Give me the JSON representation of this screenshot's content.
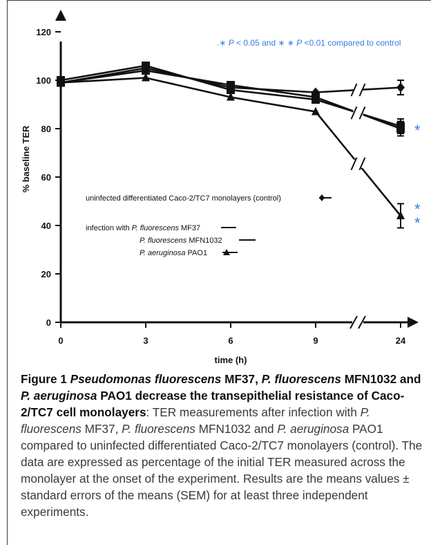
{
  "chart_data": {
    "type": "line",
    "xlabel": "time (h)",
    "ylabel": "% baseline TER",
    "x": [
      0,
      3,
      6,
      9,
      24
    ],
    "x_tick_labels": [
      "0",
      "3",
      "6",
      "9",
      "24"
    ],
    "ylim": [
      0,
      120
    ],
    "y_ticks": [
      0,
      20,
      40,
      60,
      80,
      100,
      120
    ],
    "y_tick_labels": [
      "0",
      "20",
      "40",
      "60",
      "80",
      "100",
      "120"
    ],
    "axis_break": "between 9 and 24",
    "grid": false,
    "series": [
      {
        "name": "uninfected differentiated Caco-2/TC7 monolayers (control)",
        "marker": "diamond",
        "values": [
          99,
          105,
          97,
          95,
          97
        ],
        "sem": [
          2,
          2,
          2,
          2,
          3
        ]
      },
      {
        "name_prefix": "infection with",
        "name_italic": "P. fluorescens",
        "name_suffix": "MF37",
        "marker": "square",
        "values": [
          99,
          104,
          98,
          93,
          80
        ],
        "sem": [
          2,
          2,
          2,
          2,
          3
        ]
      },
      {
        "name_italic": "P. fluorescens",
        "name_suffix": "MFN1032",
        "marker": "square",
        "values": [
          100,
          106,
          96,
          92,
          81
        ],
        "sem": [
          2,
          2,
          2,
          2,
          3
        ]
      },
      {
        "name_italic": "P. aeruginosa",
        "name_suffix": "PAO1",
        "marker": "triangle",
        "values": [
          99,
          101,
          93,
          87,
          44
        ],
        "sem": [
          2,
          2,
          2,
          3,
          5
        ]
      }
    ],
    "significance_note": {
      "star1": "∗",
      "star2": "∗ ∗",
      "p": "P",
      "text1": " < 0.05 and ",
      "text2": " <0.01 compared to control"
    },
    "significance_marks": [
      "*",
      "*",
      "*"
    ],
    "colors": {
      "axis": "#111111",
      "series": "#111111",
      "significance": "#3a7ce6"
    }
  },
  "caption": {
    "parts": [
      {
        "text": "Figure 1 ",
        "style": "bold"
      },
      {
        "text": "Pseudomonas fluorescens",
        "style": "bold-italic"
      },
      {
        "text": " MF37, ",
        "style": "bold"
      },
      {
        "text": "P. fluorescens",
        "style": "bold-italic"
      },
      {
        "text": " MFN1032 and ",
        "style": "bold"
      },
      {
        "text": "P. aeruginosa",
        "style": "bold-italic"
      },
      {
        "text": " PAO1 decrease the transepithelial resistance of Caco-2/TC7 cell monolayers",
        "style": "bold"
      },
      {
        "text": ": TER measurements after infection with ",
        "style": "normal"
      },
      {
        "text": "P. fluorescens",
        "style": "italic"
      },
      {
        "text": " MF37, ",
        "style": "normal"
      },
      {
        "text": "P. fluorescens",
        "style": "italic"
      },
      {
        "text": " MFN1032 and ",
        "style": "normal"
      },
      {
        "text": "P. aeruginosa",
        "style": "italic"
      },
      {
        "text": " PAO1 compared to uninfected differentiated Caco-2/TC7 monolayers (control). The data are expressed as percentage of the initial TER measured across the monolayer at the onset of the experiment. Results are the means values ± standard errors of the means (SEM) for at least three independent experiments.",
        "style": "normal"
      }
    ]
  }
}
